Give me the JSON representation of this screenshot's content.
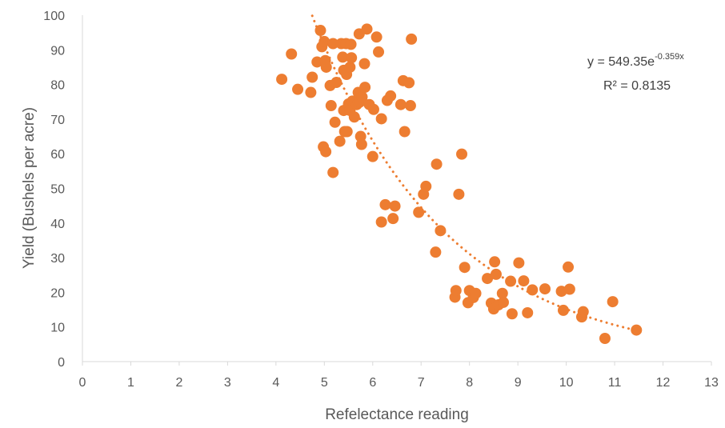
{
  "chart_data": {
    "type": "scatter",
    "title": "",
    "xlabel": "Refelectance reading",
    "ylabel": "Yield (Bushels per acre)",
    "xlim": [
      0,
      13
    ],
    "ylim": [
      0,
      100
    ],
    "x_ticks": [
      0,
      1,
      2,
      3,
      4,
      5,
      6,
      7,
      8,
      9,
      10,
      11,
      12,
      13
    ],
    "y_ticks": [
      0,
      10,
      20,
      30,
      40,
      50,
      60,
      70,
      80,
      90,
      100
    ],
    "grid": false,
    "marker_color": "#ED7D31",
    "trendline": {
      "type": "exponential",
      "a": 549.35,
      "b": -0.359,
      "x_range": [
        4.75,
        11.45
      ],
      "equation_base": "y = 549.35e",
      "equation_exponent": "-0.359x",
      "r_squared_text": "R² = 0.8135",
      "color": "#ED7D31"
    },
    "points": [
      {
        "x": 4.12,
        "y": 81.5
      },
      {
        "x": 4.32,
        "y": 88.8
      },
      {
        "x": 4.45,
        "y": 78.6
      },
      {
        "x": 4.72,
        "y": 77.7
      },
      {
        "x": 4.75,
        "y": 82.1
      },
      {
        "x": 4.85,
        "y": 86.5
      },
      {
        "x": 4.92,
        "y": 95.6
      },
      {
        "x": 4.95,
        "y": 90.9
      },
      {
        "x": 5.0,
        "y": 92.4
      },
      {
        "x": 5.02,
        "y": 86.9
      },
      {
        "x": 5.04,
        "y": 85.0
      },
      {
        "x": 4.98,
        "y": 62.0
      },
      {
        "x": 5.03,
        "y": 60.6
      },
      {
        "x": 5.12,
        "y": 79.7
      },
      {
        "x": 5.14,
        "y": 73.9
      },
      {
        "x": 5.18,
        "y": 91.8
      },
      {
        "x": 5.18,
        "y": 54.6
      },
      {
        "x": 5.22,
        "y": 69.1
      },
      {
        "x": 5.25,
        "y": 80.6
      },
      {
        "x": 5.32,
        "y": 63.6
      },
      {
        "x": 5.35,
        "y": 91.8
      },
      {
        "x": 5.38,
        "y": 87.9
      },
      {
        "x": 5.4,
        "y": 84.1
      },
      {
        "x": 5.4,
        "y": 72.5
      },
      {
        "x": 5.42,
        "y": 66.4
      },
      {
        "x": 5.45,
        "y": 91.8
      },
      {
        "x": 5.46,
        "y": 82.9
      },
      {
        "x": 5.47,
        "y": 66.4
      },
      {
        "x": 5.5,
        "y": 74.4
      },
      {
        "x": 5.53,
        "y": 85.0
      },
      {
        "x": 5.53,
        "y": 72.5
      },
      {
        "x": 5.55,
        "y": 91.6
      },
      {
        "x": 5.56,
        "y": 87.7
      },
      {
        "x": 5.58,
        "y": 75.2
      },
      {
        "x": 5.62,
        "y": 70.6
      },
      {
        "x": 5.67,
        "y": 74.2
      },
      {
        "x": 5.7,
        "y": 77.7
      },
      {
        "x": 5.72,
        "y": 94.6
      },
      {
        "x": 5.73,
        "y": 74.9
      },
      {
        "x": 5.75,
        "y": 65.0
      },
      {
        "x": 5.77,
        "y": 62.7
      },
      {
        "x": 5.78,
        "y": 76.4
      },
      {
        "x": 5.83,
        "y": 86.0
      },
      {
        "x": 5.84,
        "y": 79.2
      },
      {
        "x": 5.88,
        "y": 96.0
      },
      {
        "x": 5.93,
        "y": 74.2
      },
      {
        "x": 6.0,
        "y": 59.2
      },
      {
        "x": 6.02,
        "y": 72.8
      },
      {
        "x": 6.08,
        "y": 93.7
      },
      {
        "x": 6.12,
        "y": 89.4
      },
      {
        "x": 6.18,
        "y": 70.1
      },
      {
        "x": 6.18,
        "y": 40.3
      },
      {
        "x": 6.26,
        "y": 45.3
      },
      {
        "x": 6.3,
        "y": 75.4
      },
      {
        "x": 6.37,
        "y": 76.7
      },
      {
        "x": 6.42,
        "y": 41.3
      },
      {
        "x": 6.46,
        "y": 44.9
      },
      {
        "x": 6.58,
        "y": 74.2
      },
      {
        "x": 6.63,
        "y": 81.1
      },
      {
        "x": 6.66,
        "y": 66.4
      },
      {
        "x": 6.75,
        "y": 80.5
      },
      {
        "x": 6.78,
        "y": 73.9
      },
      {
        "x": 6.8,
        "y": 93.1
      },
      {
        "x": 6.95,
        "y": 43.1
      },
      {
        "x": 7.05,
        "y": 48.3
      },
      {
        "x": 7.1,
        "y": 50.6
      },
      {
        "x": 7.3,
        "y": 31.6
      },
      {
        "x": 7.32,
        "y": 57.0
      },
      {
        "x": 7.4,
        "y": 37.8
      },
      {
        "x": 7.7,
        "y": 18.6
      },
      {
        "x": 7.72,
        "y": 20.5
      },
      {
        "x": 7.78,
        "y": 48.3
      },
      {
        "x": 7.84,
        "y": 59.9
      },
      {
        "x": 7.9,
        "y": 27.2
      },
      {
        "x": 7.97,
        "y": 17.0
      },
      {
        "x": 8.0,
        "y": 20.5
      },
      {
        "x": 8.08,
        "y": 18.5
      },
      {
        "x": 8.13,
        "y": 19.7
      },
      {
        "x": 8.37,
        "y": 24.0
      },
      {
        "x": 8.45,
        "y": 16.9
      },
      {
        "x": 8.5,
        "y": 15.2
      },
      {
        "x": 8.52,
        "y": 28.8
      },
      {
        "x": 8.55,
        "y": 25.2
      },
      {
        "x": 8.6,
        "y": 16.4
      },
      {
        "x": 8.68,
        "y": 19.7
      },
      {
        "x": 8.7,
        "y": 17.1
      },
      {
        "x": 8.85,
        "y": 23.2
      },
      {
        "x": 8.88,
        "y": 13.8
      },
      {
        "x": 9.02,
        "y": 28.5
      },
      {
        "x": 9.12,
        "y": 23.3
      },
      {
        "x": 9.2,
        "y": 14.1
      },
      {
        "x": 9.3,
        "y": 20.7
      },
      {
        "x": 9.56,
        "y": 21.0
      },
      {
        "x": 9.9,
        "y": 20.3
      },
      {
        "x": 9.94,
        "y": 14.8
      },
      {
        "x": 10.04,
        "y": 27.3
      },
      {
        "x": 10.07,
        "y": 20.9
      },
      {
        "x": 10.32,
        "y": 12.9
      },
      {
        "x": 10.35,
        "y": 14.4
      },
      {
        "x": 10.8,
        "y": 6.7
      },
      {
        "x": 10.96,
        "y": 17.3
      },
      {
        "x": 11.45,
        "y": 9.1
      }
    ]
  }
}
